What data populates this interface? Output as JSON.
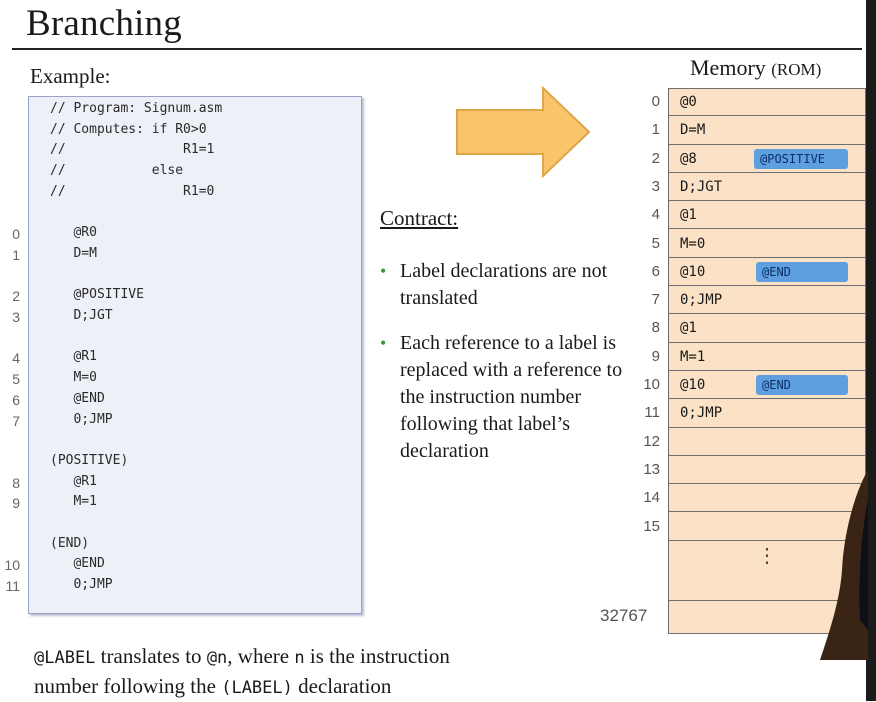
{
  "title": "Branching",
  "example_label": "Example:",
  "code_lines": [
    {
      "num": "",
      "text": "// Program: Signum.asm"
    },
    {
      "num": "",
      "text": "// Computes: if R0>0"
    },
    {
      "num": "",
      "text": "//               R1=1"
    },
    {
      "num": "",
      "text": "//           else"
    },
    {
      "num": "",
      "text": "//               R1=0"
    },
    {
      "num": "",
      "text": ""
    },
    {
      "num": "0",
      "text": "   @R0"
    },
    {
      "num": "1",
      "text": "   D=M"
    },
    {
      "num": "",
      "text": ""
    },
    {
      "num": "2",
      "text": "   @POSITIVE"
    },
    {
      "num": "3",
      "text": "   D;JGT"
    },
    {
      "num": "",
      "text": ""
    },
    {
      "num": "4",
      "text": "   @R1"
    },
    {
      "num": "5",
      "text": "   M=0"
    },
    {
      "num": "6",
      "text": "   @END"
    },
    {
      "num": "7",
      "text": "   0;JMP"
    },
    {
      "num": "",
      "text": ""
    },
    {
      "num": "",
      "text": "(POSITIVE)"
    },
    {
      "num": "8",
      "text": "   @R1"
    },
    {
      "num": "9",
      "text": "   M=1"
    },
    {
      "num": "",
      "text": ""
    },
    {
      "num": "",
      "text": "(END)"
    },
    {
      "num": "10",
      "text": "   @END"
    },
    {
      "num": "11",
      "text": "   0;JMP"
    }
  ],
  "contract": {
    "title": "Contract:",
    "bullets": [
      "Label declarations are not translated",
      "Each reference to a label is replaced with a reference to the instruction number following that label’s declaration"
    ]
  },
  "memory": {
    "title": "Memory",
    "title_suffix": "(ROM)",
    "rows": [
      {
        "idx": "0",
        "text": "@0",
        "tag": ""
      },
      {
        "idx": "1",
        "text": "D=M",
        "tag": ""
      },
      {
        "idx": "2",
        "text": "@8",
        "tag": "@POSITIVE"
      },
      {
        "idx": "3",
        "text": "D;JGT",
        "tag": ""
      },
      {
        "idx": "4",
        "text": "@1",
        "tag": ""
      },
      {
        "idx": "5",
        "text": "M=0",
        "tag": ""
      },
      {
        "idx": "6",
        "text": "@10",
        "tag": "@END"
      },
      {
        "idx": "7",
        "text": "0;JMP",
        "tag": ""
      },
      {
        "idx": "8",
        "text": "@1",
        "tag": ""
      },
      {
        "idx": "9",
        "text": "M=1",
        "tag": ""
      },
      {
        "idx": "10",
        "text": "@10",
        "tag": "@END"
      },
      {
        "idx": "11",
        "text": "0;JMP",
        "tag": ""
      },
      {
        "idx": "12",
        "text": "",
        "tag": ""
      },
      {
        "idx": "13",
        "text": "",
        "tag": ""
      },
      {
        "idx": "14",
        "text": "",
        "tag": ""
      },
      {
        "idx": "15",
        "text": "",
        "tag": ""
      }
    ],
    "ellipsis": "⋮",
    "last_index": "32767"
  },
  "footer": {
    "line1_code": "@LABEL",
    "line1_mid": " translates to ",
    "line1_code2": "@n",
    "line1_end": ", where ",
    "line1_code3": "n",
    "line1_tail": " is the instruction",
    "line2_start": "number following the ",
    "line2_code": "(LABEL)",
    "line2_end": " declaration"
  },
  "colors": {
    "memory_cell": "#fbe2c6",
    "tag": "#5e9fe0",
    "arrow": "#f8c56a",
    "bullet": "#3c9a4a"
  }
}
